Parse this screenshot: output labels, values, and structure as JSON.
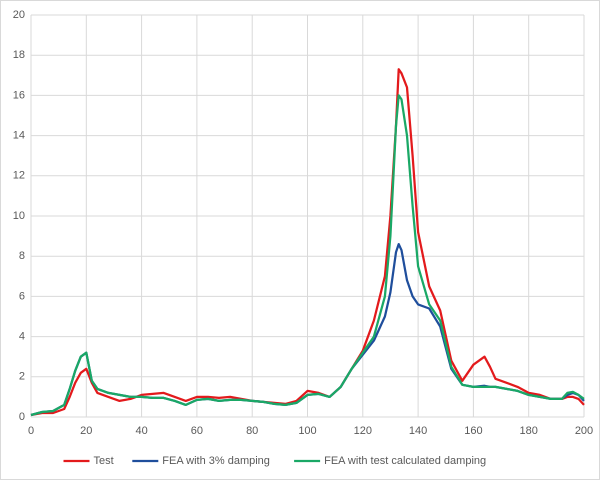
{
  "chart_data": {
    "type": "line",
    "x": [
      0,
      4,
      8,
      12,
      14,
      16,
      18,
      20,
      22,
      24,
      28,
      32,
      36,
      40,
      44,
      48,
      52,
      56,
      60,
      64,
      68,
      72,
      76,
      80,
      84,
      88,
      92,
      96,
      100,
      104,
      108,
      112,
      116,
      120,
      124,
      128,
      130,
      132,
      133,
      134,
      136,
      138,
      140,
      144,
      148,
      152,
      156,
      160,
      164,
      166,
      168,
      172,
      176,
      180,
      184,
      188,
      192,
      194,
      196,
      198,
      200
    ],
    "series": [
      {
        "name": "Test",
        "color": "#e31a1c",
        "values": [
          0.1,
          0.2,
          0.2,
          0.4,
          1.0,
          1.7,
          2.2,
          2.4,
          1.7,
          1.2,
          1.0,
          0.8,
          0.9,
          1.1,
          1.15,
          1.2,
          1.0,
          0.8,
          1.0,
          1.0,
          0.95,
          1.0,
          0.9,
          0.8,
          0.75,
          0.7,
          0.65,
          0.8,
          1.3,
          1.2,
          1.0,
          1.5,
          2.4,
          3.3,
          4.8,
          7.0,
          10,
          14.5,
          17.3,
          17.1,
          16.4,
          13,
          9.2,
          6.5,
          5.3,
          2.8,
          1.8,
          2.6,
          3.0,
          2.5,
          1.9,
          1.7,
          1.5,
          1.2,
          1.1,
          0.9,
          0.9,
          1.0,
          1.0,
          0.9,
          0.6
        ]
      },
      {
        "name": "FEA with 3% damping",
        "color": "#1f4e9c",
        "values": [
          0.1,
          0.25,
          0.3,
          0.6,
          1.4,
          2.3,
          3.0,
          3.2,
          1.8,
          1.4,
          1.2,
          1.1,
          1.0,
          1.0,
          0.95,
          0.95,
          0.8,
          0.6,
          0.85,
          0.9,
          0.8,
          0.85,
          0.85,
          0.8,
          0.75,
          0.65,
          0.6,
          0.7,
          1.1,
          1.15,
          1.0,
          1.5,
          2.4,
          3.1,
          3.8,
          5.0,
          6.2,
          8.2,
          8.6,
          8.3,
          6.8,
          6.0,
          5.6,
          5.4,
          4.5,
          2.4,
          1.6,
          1.5,
          1.55,
          1.5,
          1.5,
          1.4,
          1.3,
          1.1,
          1.0,
          0.9,
          0.9,
          1.1,
          1.2,
          1.1,
          0.8
        ]
      },
      {
        "name": "FEA with test calculated damping",
        "color": "#1aa866",
        "values": [
          0.1,
          0.25,
          0.3,
          0.6,
          1.4,
          2.3,
          3.0,
          3.2,
          1.8,
          1.4,
          1.2,
          1.1,
          1.0,
          1.0,
          0.95,
          0.95,
          0.8,
          0.6,
          0.85,
          0.9,
          0.8,
          0.85,
          0.85,
          0.8,
          0.75,
          0.65,
          0.6,
          0.7,
          1.1,
          1.15,
          1.0,
          1.5,
          2.4,
          3.2,
          4.0,
          6.0,
          9,
          14.5,
          16.0,
          15.8,
          14,
          10.5,
          7.5,
          5.6,
          4.8,
          2.5,
          1.6,
          1.5,
          1.5,
          1.5,
          1.5,
          1.4,
          1.3,
          1.1,
          1.0,
          0.9,
          0.9,
          1.2,
          1.25,
          1.1,
          0.9
        ]
      }
    ],
    "xlim": [
      0,
      200
    ],
    "xticks": [
      0,
      20,
      40,
      60,
      80,
      100,
      120,
      140,
      160,
      180,
      200
    ],
    "ylim": [
      0,
      20
    ],
    "yticks": [
      0,
      2,
      4,
      6,
      8,
      10,
      12,
      14,
      16,
      18,
      20
    ],
    "grid": true,
    "legend": "bottom"
  }
}
